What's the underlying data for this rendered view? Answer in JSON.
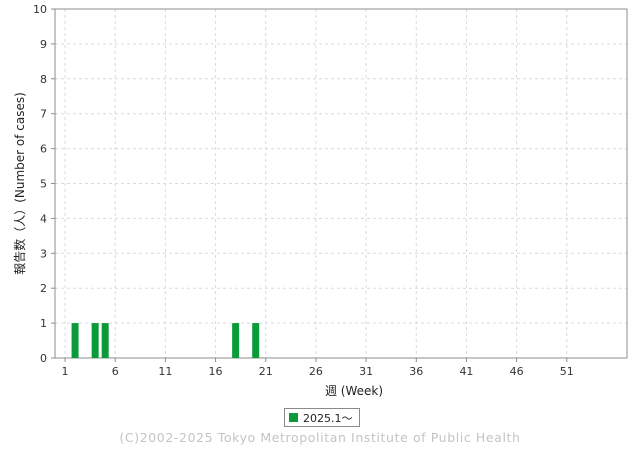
{
  "chart_data": {
    "type": "bar",
    "ylabel": "報告数（人）(Number of cases)",
    "xlabel": "週 (Week)",
    "ylim": [
      0,
      10
    ],
    "xlim": [
      0,
      57
    ],
    "y_ticks": [
      0,
      1,
      2,
      3,
      4,
      5,
      6,
      7,
      8,
      9,
      10
    ],
    "x_ticks": [
      1,
      6,
      11,
      16,
      21,
      26,
      31,
      36,
      41,
      46,
      51
    ],
    "grid": true,
    "legend_position": "bottom",
    "series": [
      {
        "name": "2025.1〜",
        "color": "#0a9a3a",
        "x": [
          2,
          4,
          5,
          18,
          20
        ],
        "values": [
          1,
          1,
          1,
          1,
          1
        ]
      }
    ]
  },
  "copyright": "(C)2002-2025 Tokyo Metropolitan Institute of Public Health"
}
